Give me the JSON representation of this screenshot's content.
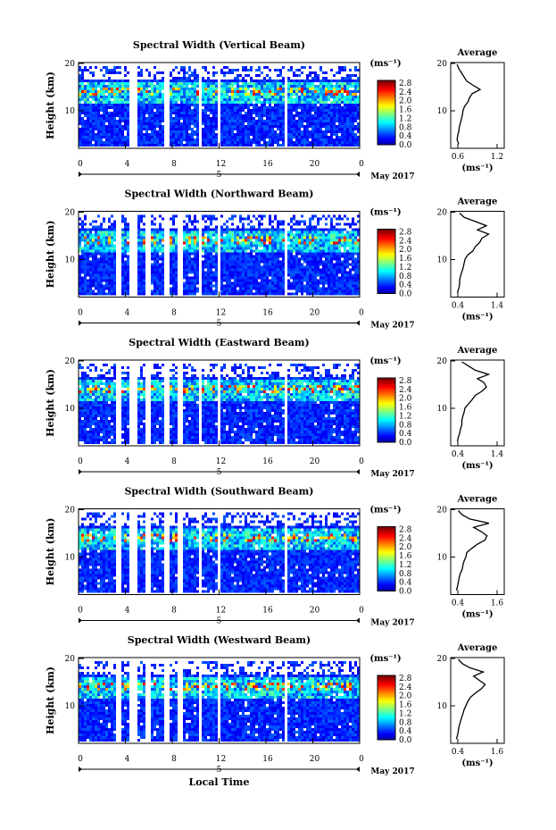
{
  "chart_data": [
    {
      "type": "heatmap",
      "title": "Spectral Width (Vertical Beam)",
      "ylabel": "Height (km)",
      "yticks": [
        "20",
        "10"
      ],
      "xticks": [
        "0",
        "4",
        "8",
        "12",
        "16",
        "20",
        "0"
      ],
      "date_marker": "5",
      "date_label": "May 2017",
      "colorbar": {
        "unit": "(ms⁻¹)",
        "ticks": [
          "2.8",
          "2.4",
          "2.0",
          "1.6",
          "1.2",
          "0.8",
          "0.4",
          "0.0"
        ]
      },
      "profile": {
        "title": "Average",
        "xticks": [
          "0.6",
          "1.2"
        ],
        "xlabel": "(ms⁻¹)",
        "yticks": [
          "20",
          "10"
        ],
        "xlim": [
          0.4,
          1.4
        ],
        "height_km": [
          1,
          2,
          3,
          4,
          5,
          6,
          7,
          8,
          9,
          10,
          11,
          12,
          13,
          14,
          15,
          16,
          17,
          18,
          19,
          20
        ],
        "width": [
          0.55,
          0.52,
          0.53,
          0.55,
          0.56,
          0.58,
          0.6,
          0.62,
          0.63,
          0.66,
          0.72,
          0.75,
          0.8,
          0.95,
          0.82,
          0.7,
          0.65,
          0.6,
          0.55,
          0.52
        ]
      }
    },
    {
      "type": "heatmap",
      "title": "Spectral Width (Northward Beam)",
      "ylabel": "Height (km)",
      "yticks": [
        "20",
        "10"
      ],
      "xticks": [
        "0",
        "4",
        "8",
        "12",
        "16",
        "20",
        "0"
      ],
      "date_marker": "5",
      "date_label": "May 2017",
      "colorbar": {
        "unit": "(ms⁻¹)",
        "ticks": [
          "2.8",
          "2.4",
          "2.0",
          "1.6",
          "1.2",
          "0.8",
          "0.4",
          "0.0"
        ]
      },
      "profile": {
        "title": "Average",
        "xticks": [
          "0.4",
          "1.4"
        ],
        "xlabel": "(ms⁻¹)",
        "yticks": [
          "20",
          "10"
        ],
        "xlim": [
          0.3,
          1.5
        ],
        "height_km": [
          1,
          2,
          3,
          4,
          5,
          6,
          7,
          8,
          9,
          10,
          11,
          12,
          13,
          14,
          15,
          16,
          17,
          18,
          19,
          20
        ],
        "width": [
          0.45,
          0.48,
          0.5,
          0.5,
          0.52,
          0.55,
          0.58,
          0.6,
          0.62,
          0.68,
          0.8,
          0.85,
          0.95,
          1.0,
          1.15,
          0.9,
          1.1,
          0.85,
          0.6,
          0.5
        ]
      }
    },
    {
      "type": "heatmap",
      "title": "Spectral Width (Eastward Beam)",
      "ylabel": "Height (km)",
      "yticks": [
        "20",
        "10"
      ],
      "xticks": [
        "0",
        "4",
        "8",
        "12",
        "16",
        "20",
        "0"
      ],
      "date_marker": "5",
      "date_label": "May 2017",
      "colorbar": {
        "unit": "(ms⁻¹)",
        "ticks": [
          "2.8",
          "2.4",
          "2.0",
          "1.6",
          "1.2",
          "0.8",
          "0.4",
          "0.0"
        ]
      },
      "profile": {
        "title": "Average",
        "xticks": [
          "0.4",
          "1.4"
        ],
        "xlabel": "(ms⁻¹)",
        "yticks": [
          "20",
          "10"
        ],
        "xlim": [
          0.3,
          1.5
        ],
        "height_km": [
          1,
          2,
          3,
          4,
          5,
          6,
          7,
          8,
          9,
          10,
          11,
          12,
          13,
          14,
          15,
          16,
          17,
          18,
          19,
          20
        ],
        "width": [
          0.45,
          0.47,
          0.5,
          0.52,
          0.55,
          0.55,
          0.57,
          0.6,
          0.62,
          0.7,
          0.78,
          0.85,
          1.0,
          1.1,
          1.05,
          0.9,
          1.15,
          0.85,
          0.7,
          0.55
        ]
      }
    },
    {
      "type": "heatmap",
      "title": "Spectral Width (Southward Beam)",
      "ylabel": "Height (km)",
      "yticks": [
        "20",
        "10"
      ],
      "xticks": [
        "0",
        "4",
        "8",
        "12",
        "16",
        "20",
        "0"
      ],
      "date_marker": "5",
      "date_label": "May 2017",
      "colorbar": {
        "unit": "(ms⁻¹)",
        "ticks": [
          "2.8",
          "2.4",
          "2.0",
          "1.6",
          "1.2",
          "0.8",
          "0.4",
          "0.0"
        ]
      },
      "profile": {
        "title": "Average",
        "xticks": [
          "0.4",
          "1.6"
        ],
        "xlabel": "(ms⁻¹)",
        "yticks": [
          "20",
          "10"
        ],
        "xlim": [
          0.3,
          1.7
        ],
        "height_km": [
          1,
          2,
          3,
          4,
          5,
          6,
          7,
          8,
          9,
          10,
          11,
          12,
          13,
          14,
          15,
          16,
          17,
          18,
          19,
          20
        ],
        "width": [
          0.45,
          0.48,
          0.5,
          0.52,
          0.55,
          0.6,
          0.62,
          0.65,
          0.7,
          0.72,
          0.85,
          1.0,
          1.2,
          1.25,
          1.1,
          0.9,
          1.3,
          0.8,
          0.6,
          0.5
        ]
      }
    },
    {
      "type": "heatmap",
      "title": "Spectral Width (Westward Beam)",
      "ylabel": "Height (km)",
      "yticks": [
        "20",
        "10"
      ],
      "xticks": [
        "0",
        "4",
        "8",
        "12",
        "16",
        "20",
        "0"
      ],
      "date_marker": "5",
      "date_label": "May 2017",
      "xlabel": "Local Time",
      "colorbar": {
        "unit": "(ms⁻¹)",
        "ticks": [
          "2.8",
          "2.4",
          "2.0",
          "1.6",
          "1.2",
          "0.8",
          "0.4",
          "0.0"
        ]
      },
      "profile": {
        "title": "Average",
        "xticks": [
          "0.4",
          "1.6"
        ],
        "xlabel": "(ms⁻¹)",
        "yticks": [
          "20",
          "10"
        ],
        "xlim": [
          0.3,
          1.7
        ],
        "height_km": [
          1,
          2,
          3,
          4,
          5,
          6,
          7,
          8,
          9,
          10,
          11,
          12,
          13,
          14,
          15,
          16,
          17,
          18,
          19,
          20
        ],
        "width": [
          0.45,
          0.48,
          0.5,
          0.52,
          0.55,
          0.58,
          0.62,
          0.65,
          0.7,
          0.75,
          0.82,
          0.95,
          1.1,
          1.2,
          1.05,
          0.9,
          1.15,
          0.8,
          0.6,
          0.5
        ]
      }
    }
  ]
}
